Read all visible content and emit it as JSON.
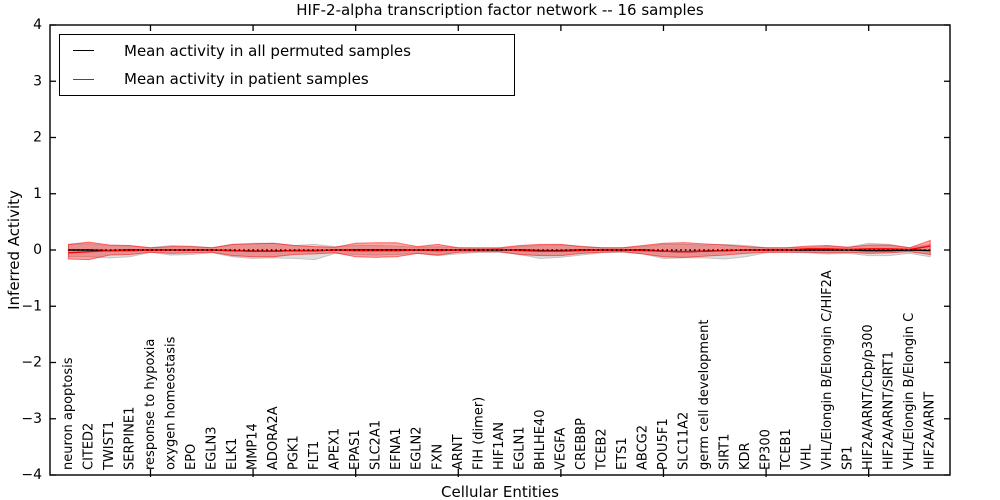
{
  "chart_data": {
    "type": "line",
    "title": "HIF-2-alpha transcription factor network -- 16 samples",
    "xlabel": "Cellular Entities",
    "ylabel": "Inferred Activity",
    "ylim": [
      -4,
      4
    ],
    "yticks": [
      4,
      3,
      2,
      1,
      0,
      -1,
      -2,
      -3,
      -4
    ],
    "grid": false,
    "legend_position": "upper left",
    "zero_reference_line": "dotted",
    "x_major_tick_indices": [
      4,
      9,
      14,
      19,
      24,
      29,
      34,
      39
    ],
    "categories": [
      "neuron apoptosis",
      "CITED2",
      "TWIST1",
      "SERPINE1",
      "response to hypoxia",
      "oxygen homeostasis",
      "EPO",
      "EGLN3",
      "ELK1",
      "MMP14",
      "ADORA2A",
      "PGK1",
      "FLT1",
      "APEX1",
      "EPAS1",
      "SLC2A1",
      "EFNA1",
      "EGLN2",
      "FXN",
      "ARNT",
      "FIH (dimer)",
      "HIF1AN",
      "EGLN1",
      "BHLHE40",
      "VEGFA",
      "CREBBP",
      "TCEB2",
      "ETS1",
      "ABCG2",
      "POU5F1",
      "SLC11A2",
      "germ cell development",
      "SIRT1",
      "KDR",
      "EP300",
      "TCEB1",
      "VHL",
      "VHL/Elongin B/Elongin C/HIF2A",
      "SP1",
      "HIF2A/ARNT/Cbp/p300",
      "HIF2A/ARNT/SIRT1",
      "VHL/Elongin B/Elongin C",
      "HIF2A/ARNT"
    ],
    "series": [
      {
        "name": "Mean activity in all permuted samples",
        "color": "#000000",
        "values": [
          0,
          0,
          -0.01,
          0,
          0,
          0,
          0,
          0,
          -0.01,
          -0.02,
          -0.02,
          -0.01,
          -0.01,
          0,
          0,
          0,
          0,
          0,
          0,
          0,
          0,
          0,
          0,
          -0.01,
          -0.01,
          0,
          0,
          0,
          0,
          -0.02,
          -0.03,
          -0.02,
          -0.01,
          0,
          0,
          0,
          0,
          0,
          0,
          -0.01,
          -0.01,
          0,
          -0.01
        ]
      },
      {
        "name": "Mean activity in patient samples",
        "color": "#ff0000",
        "values": [
          -0.05,
          -0.03,
          -0.01,
          -0.01,
          0,
          0,
          0,
          0,
          -0.01,
          -0.02,
          -0.02,
          -0.01,
          -0.01,
          0,
          -0.01,
          -0.01,
          -0.01,
          0,
          -0.01,
          0,
          0,
          0.01,
          -0.01,
          -0.02,
          -0.02,
          -0.01,
          0,
          0,
          -0.01,
          -0.02,
          -0.03,
          -0.02,
          -0.01,
          0,
          0,
          0,
          0.02,
          0.02,
          0.01,
          0.02,
          0.02,
          0.01,
          0.07
        ]
      }
    ],
    "bands": [
      {
        "name": "permuted samples spread",
        "color": "#999999",
        "opacity": 0.32,
        "upper": [
          0.1,
          0.11,
          0.08,
          0.07,
          0.04,
          0.08,
          0.07,
          0.04,
          0.1,
          0.12,
          0.12,
          0.08,
          0.1,
          0.06,
          0.08,
          0.08,
          0.07,
          0.05,
          0.06,
          0.04,
          0.03,
          0.03,
          0.06,
          0.08,
          0.09,
          0.07,
          0.04,
          0.04,
          0.06,
          0.1,
          0.1,
          0.09,
          0.1,
          0.08,
          0.04,
          0.04,
          0.05,
          0.06,
          0.05,
          0.12,
          0.1,
          0.04,
          0.1
        ],
        "lower": [
          -0.12,
          -0.12,
          -0.14,
          -0.12,
          -0.04,
          -0.09,
          -0.08,
          -0.05,
          -0.12,
          -0.15,
          -0.14,
          -0.15,
          -0.17,
          -0.06,
          -0.08,
          -0.09,
          -0.08,
          -0.06,
          -0.1,
          -0.07,
          -0.04,
          -0.04,
          -0.08,
          -0.15,
          -0.13,
          -0.09,
          -0.05,
          -0.04,
          -0.07,
          -0.15,
          -0.14,
          -0.14,
          -0.16,
          -0.12,
          -0.05,
          -0.04,
          -0.05,
          -0.07,
          -0.06,
          -0.1,
          -0.1,
          -0.06,
          -0.12
        ]
      },
      {
        "name": "patient samples spread",
        "color": "#ff0000",
        "opacity": 0.35,
        "upper": [
          0.1,
          0.14,
          0.09,
          0.08,
          0.04,
          0.06,
          0.06,
          0.04,
          0.1,
          0.11,
          0.12,
          0.08,
          0.06,
          0.05,
          0.12,
          0.13,
          0.13,
          0.06,
          0.1,
          0.04,
          0.04,
          0.04,
          0.08,
          0.1,
          0.1,
          0.06,
          0.04,
          0.04,
          0.08,
          0.12,
          0.13,
          0.11,
          0.09,
          0.06,
          0.04,
          0.04,
          0.07,
          0.08,
          0.05,
          0.09,
          0.09,
          0.04,
          0.17
        ],
        "lower": [
          -0.16,
          -0.17,
          -0.09,
          -0.08,
          -0.04,
          -0.06,
          -0.05,
          -0.04,
          -0.1,
          -0.12,
          -0.12,
          -0.08,
          -0.07,
          -0.05,
          -0.12,
          -0.13,
          -0.12,
          -0.06,
          -0.09,
          -0.04,
          -0.03,
          -0.03,
          -0.08,
          -0.1,
          -0.1,
          -0.06,
          -0.04,
          -0.03,
          -0.07,
          -0.12,
          -0.13,
          -0.11,
          -0.09,
          -0.06,
          -0.04,
          -0.04,
          -0.04,
          -0.05,
          -0.04,
          -0.06,
          -0.05,
          -0.03,
          -0.08
        ]
      }
    ]
  },
  "legend": {
    "entries": [
      {
        "label": "Mean activity in all permuted samples",
        "color": "#000000"
      },
      {
        "label": "Mean activity in patient samples",
        "color": "#ff0000"
      }
    ]
  }
}
